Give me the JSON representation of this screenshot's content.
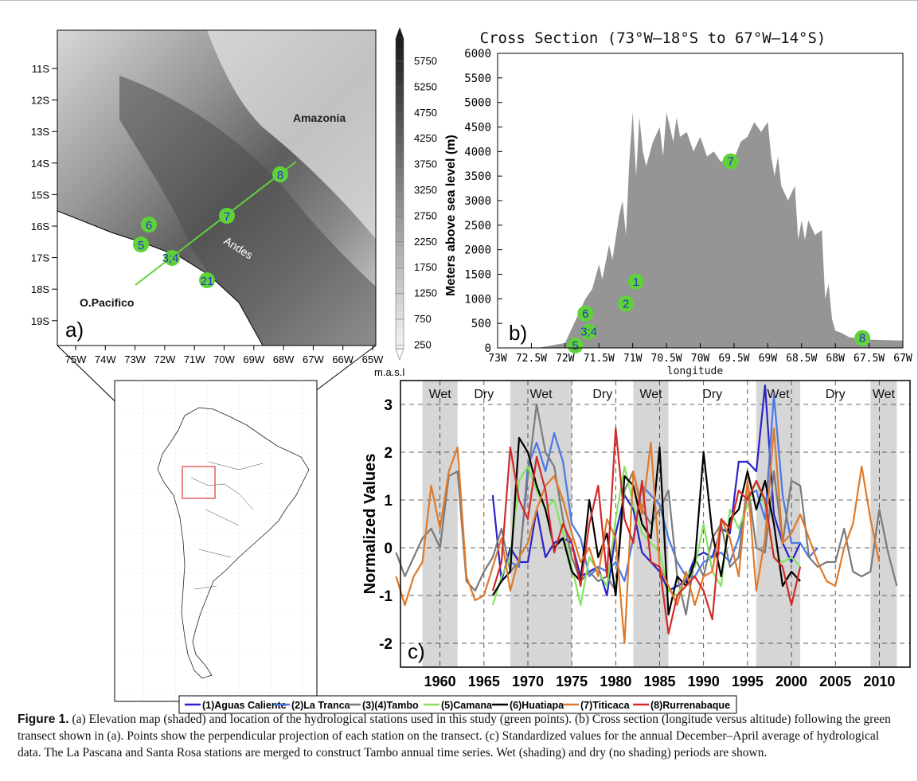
{
  "map_a": {
    "panel_label": "a)",
    "lat_ticks": [
      "11S",
      "12S",
      "13S",
      "14S",
      "15S",
      "16S",
      "17S",
      "18S",
      "19S"
    ],
    "lon_ticks": [
      "75W",
      "74W",
      "73W",
      "72W",
      "71W",
      "70W",
      "69W",
      "68W",
      "67W",
      "66W",
      "65W"
    ],
    "labels": {
      "amazonia": "Amazonia",
      "andes": "Andes",
      "pacific": "O.Pacifico"
    },
    "stations": [
      {
        "id": "8",
        "label": "8"
      },
      {
        "id": "7",
        "label": "7"
      },
      {
        "id": "6",
        "label": "6"
      },
      {
        "id": "5",
        "label": "5"
      },
      {
        "id": "34",
        "label": "3;4"
      },
      {
        "id": "21",
        "label": "21"
      }
    ],
    "colorbar": {
      "ticks": [
        "5750",
        "5250",
        "4750",
        "4250",
        "3750",
        "3250",
        "2750",
        "2250",
        "1750",
        "1250",
        "750",
        "250"
      ],
      "unit": "m.a.s.l",
      "title": "Meters above sea level (m)"
    }
  },
  "chart_data": [
    {
      "type": "area",
      "panel_label": "b)",
      "title": "Cross Section (73°W–18°S to 67°W–14°S)",
      "xlabel": "longitude",
      "ylabel": "Meters above sea level (m)",
      "x_ticks": [
        "73W",
        "72.5W",
        "72W",
        "71.5W",
        "71W",
        "70.5W",
        "70W",
        "69.5W",
        "69W",
        "68.5W",
        "68W",
        "67.5W",
        "67W"
      ],
      "y_ticks": [
        0,
        500,
        1000,
        1500,
        2000,
        2500,
        3000,
        3500,
        4000,
        4500,
        5000,
        5500,
        6000
      ],
      "xlim": [
        -73,
        -67
      ],
      "ylim": [
        0,
        6000
      ],
      "profile": {
        "lon": [
          -73,
          -72.4,
          -72.0,
          -71.9,
          -71.8,
          -71.7,
          -71.6,
          -71.5,
          -71.45,
          -71.35,
          -71.3,
          -71.2,
          -71.15,
          -71.1,
          -71.05,
          -71.0,
          -70.95,
          -70.9,
          -70.85,
          -70.8,
          -70.7,
          -70.6,
          -70.55,
          -70.5,
          -70.4,
          -70.35,
          -70.3,
          -70.2,
          -70.1,
          -70.0,
          -69.9,
          -69.8,
          -69.7,
          -69.6,
          -69.5,
          -69.4,
          -69.3,
          -69.2,
          -69.1,
          -69.0,
          -68.95,
          -68.9,
          -68.85,
          -68.8,
          -68.7,
          -68.6,
          -68.55,
          -68.5,
          -68.45,
          -68.4,
          -68.3,
          -68.2,
          -68.15,
          -68.1,
          -68.05,
          -68.0,
          -67.9,
          -67.8,
          -67.7,
          -67.5,
          -67.3,
          -67.0
        ],
        "elev": [
          0,
          0,
          100,
          400,
          700,
          1000,
          1200,
          1700,
          1400,
          2100,
          1800,
          2700,
          3000,
          2300,
          3800,
          4800,
          3500,
          4700,
          4000,
          3700,
          4200,
          4500,
          3900,
          4800,
          4200,
          4700,
          4300,
          4400,
          4000,
          4300,
          3900,
          4000,
          3800,
          3800,
          3850,
          4200,
          4300,
          4600,
          4400,
          4600,
          3900,
          3500,
          3900,
          3300,
          3000,
          3300,
          2200,
          2600,
          2200,
          2600,
          2300,
          2400,
          1000,
          1300,
          600,
          350,
          300,
          220,
          200,
          170,
          160,
          150
        ]
      },
      "stations": [
        {
          "label": "1",
          "lon": -70.95,
          "elev": 1350,
          "color": "#2d2dd0"
        },
        {
          "label": "2",
          "lon": -71.1,
          "elev": 900,
          "color": "#2d2dd0"
        },
        {
          "label": "6",
          "lon": -71.7,
          "elev": 700,
          "color": "#2d2dd0"
        },
        {
          "label": "3;4",
          "lon": -71.65,
          "elev": 330,
          "color": "#2d2dd0"
        },
        {
          "label": "5",
          "lon": -71.85,
          "elev": 50,
          "color": "#2d2dd0"
        },
        {
          "label": "7",
          "lon": -69.55,
          "elev": 3800,
          "color": "#2d2dd0"
        },
        {
          "label": "8",
          "lon": -67.6,
          "elev": 200,
          "color": "#2d2dd0"
        }
      ]
    },
    {
      "type": "line",
      "panel_label": "c)",
      "ylabel": "Normalized Values",
      "x_ticks": [
        1960,
        1965,
        1970,
        1975,
        1980,
        1985,
        1990,
        1995,
        2000,
        2005,
        2010
      ],
      "y_ticks": [
        -2,
        -1,
        0,
        1,
        2,
        3
      ],
      "xlim": [
        1955.5,
        2013.5
      ],
      "ylim": [
        -2.5,
        3.5
      ],
      "periods": [
        {
          "label": "Wet",
          "start": 1958,
          "end": 1962
        },
        {
          "label": "Dry",
          "start": 1962,
          "end": 1968
        },
        {
          "label": "Wet",
          "start": 1968,
          "end": 1975
        },
        {
          "label": "Dry",
          "start": 1975,
          "end": 1982
        },
        {
          "label": "Wet",
          "start": 1982,
          "end": 1986
        },
        {
          "label": "Dry",
          "start": 1986,
          "end": 1996
        },
        {
          "label": "Wet",
          "start": 1996,
          "end": 2001
        },
        {
          "label": "Dry",
          "start": 2001,
          "end": 2009
        },
        {
          "label": "Wet",
          "start": 2009,
          "end": 2012
        }
      ],
      "series": [
        {
          "name": "(1)Aguas Caliente",
          "color": "#2a24c8",
          "start": 1966,
          "values": [
            1.1,
            -0.7,
            0.0,
            -0.3,
            -0.3,
            0.8,
            -0.2,
            0.1,
            0.2,
            0.1,
            -0.6,
            -0.5,
            -0.4,
            -1.0,
            0.3,
            1.1,
            0.8,
            -0.1,
            -0.3,
            -0.5,
            -0.9,
            -0.8,
            -0.7,
            -0.2,
            -0.1,
            -0.2,
            0.4,
            0.3,
            1.8,
            1.8,
            1.6,
            3.4,
            0.7,
            0.1,
            -0.3,
            0.1
          ]
        },
        {
          "name": "(2)La Tranca",
          "color": "#4a78e6",
          "start": 1968,
          "values": [
            -0.3,
            -0.4,
            1.7,
            2.2,
            1.6,
            2.4,
            1.8,
            0.5,
            0.2,
            -0.6,
            -0.4,
            -0.5,
            -0.3,
            -0.7,
            0.2,
            1.3,
            1.1,
            0.9,
            0.2,
            -0.3,
            -0.6,
            -0.6,
            -0.3,
            -0.2,
            -0.1,
            -0.3,
            0.2,
            1.1,
            1.2,
            0.6,
            3.2,
            1.1,
            0.1,
            0.1,
            -0.2,
            0.0
          ]
        },
        {
          "name": "(3)(4)Tambo",
          "color": "#7b7b7b",
          "start": 1955,
          "values": [
            -0.1,
            -0.6,
            -0.2,
            0.2,
            0.4,
            0.0,
            1.5,
            1.6,
            -0.7,
            -0.9,
            -0.5,
            -0.2,
            0.4,
            -0.5,
            -0.3,
            1.5,
            3.0,
            2.0,
            1.7,
            0.6,
            -0.2,
            -0.7,
            -0.5,
            -0.7,
            -0.6,
            -0.9,
            1.2,
            1.6,
            0.8,
            0.5,
            0.8,
            1.2,
            -0.6,
            -1.4,
            -0.2,
            -0.6,
            0.2,
            0.5,
            -0.4,
            -0.2,
            1.4,
            0.0,
            -0.1,
            1.6,
            0.1,
            1.4,
            1.3,
            -0.2,
            -0.4,
            -0.3,
            -0.3,
            0.4,
            -0.5,
            -0.6,
            -0.5,
            0.8,
            -0.1,
            -0.8
          ]
        },
        {
          "name": "(5)Camana",
          "color": "#86e35f",
          "start": 1966,
          "values": [
            -1.2,
            -0.6,
            -0.2,
            1.4,
            1.7,
            1.2,
            0.8,
            1.0,
            0.3,
            -0.4,
            -1.2,
            -0.2,
            -0.5,
            -0.8,
            0.6,
            1.7,
            0.9,
            0.3,
            0.1,
            -0.1,
            -0.9,
            -1.0,
            -0.6,
            -0.4,
            0.5,
            -0.5,
            -0.8,
            0.8,
            0.4,
            0.9,
            1.4,
            0.9,
            -0.2,
            -0.3,
            -0.2,
            -0.4
          ]
        },
        {
          "name": "(6)Huatiapa",
          "color": "#000000",
          "start": 1966,
          "values": [
            -1.0,
            -0.7,
            -0.5,
            2.3,
            2.0,
            1.3,
            0.8,
            0.0,
            0.2,
            -0.5,
            -0.7,
            1.0,
            -0.2,
            0.3,
            -1.0,
            1.5,
            1.3,
            0.5,
            0.2,
            2.1,
            -1.4,
            -0.6,
            -0.8,
            -0.3,
            2.0,
            0.3,
            -0.6,
            0.6,
            0.8,
            1.6,
            0.8,
            1.4,
            0.5,
            -0.8,
            -0.5,
            -0.7
          ]
        },
        {
          "name": "(7)Titicaca",
          "color": "#e07a2a",
          "start": 1955,
          "values": [
            -0.6,
            -1.2,
            -0.6,
            -0.3,
            1.3,
            0.4,
            1.6,
            2.1,
            -0.6,
            -1.1,
            -1.0,
            -0.4,
            0.2,
            -0.9,
            -0.2,
            0.1,
            0.8,
            1.3,
            1.5,
            1.0,
            0.3,
            -0.3,
            0.0,
            -0.6,
            0.6,
            0.2,
            -2.0,
            1.6,
            0.7,
            2.2,
            -0.4,
            -0.8,
            -1.2,
            -0.5,
            -1.2,
            -0.6,
            -0.5,
            0.6,
            0.2,
            -0.6,
            1.4,
            -0.9,
            0.2,
            2.5,
            0.1,
            0.3,
            0.7,
            0.2,
            -0.3,
            -0.7,
            -0.8,
            0.0,
            0.5,
            1.7,
            0.6,
            -0.3
          ]
        },
        {
          "name": "(8)Rurrenabaque",
          "color": "#d02a2a",
          "start": 1966,
          "values": [
            -0.9,
            -0.3,
            2.1,
            1.0,
            0.6,
            1.9,
            1.2,
            -0.1,
            0.5,
            0.1,
            -0.8,
            0.5,
            1.3,
            -0.6,
            2.5,
            0.6,
            0.1,
            1.4,
            -0.3,
            -0.4,
            -1.8,
            -1.0,
            -0.8,
            -0.6,
            -0.9,
            -1.5,
            0.6,
            0.4,
            1.2,
            1.0,
            1.4,
            1.0,
            -0.2,
            -0.4,
            -1.2,
            -0.4
          ]
        }
      ],
      "series_note": ""
    }
  ],
  "legend": [
    {
      "label": "(1)Aguas Caliente",
      "color": "#2a24c8"
    },
    {
      "label": "(2)La Tranca",
      "color": "#4a78e6"
    },
    {
      "label": "(3)(4)Tambo",
      "color": "#7b7b7b"
    },
    {
      "label": "(5)Camana",
      "color": "#86e35f"
    },
    {
      "label": "(6)Huatiapa",
      "color": "#000000"
    },
    {
      "label": "(7)Titicaca",
      "color": "#e07a2a"
    },
    {
      "label": "(8)Rurrenabaque",
      "color": "#d02a2a"
    }
  ],
  "caption": {
    "prefix": "Figure 1.",
    "text": "(a) Elevation map (shaded) and location of the hydrological stations used in this study (green points). (b) Cross section (longitude versus altitude) following the green transect shown in (a). Points show the perpendicular projection of each station on the transect. (c) Standardized values for the annual December–April average of hydrological data. The La Pascana and Santa Rosa stations are merged to construct Tambo annual time series. Wet (shading) and dry (no shading) periods are shown."
  }
}
